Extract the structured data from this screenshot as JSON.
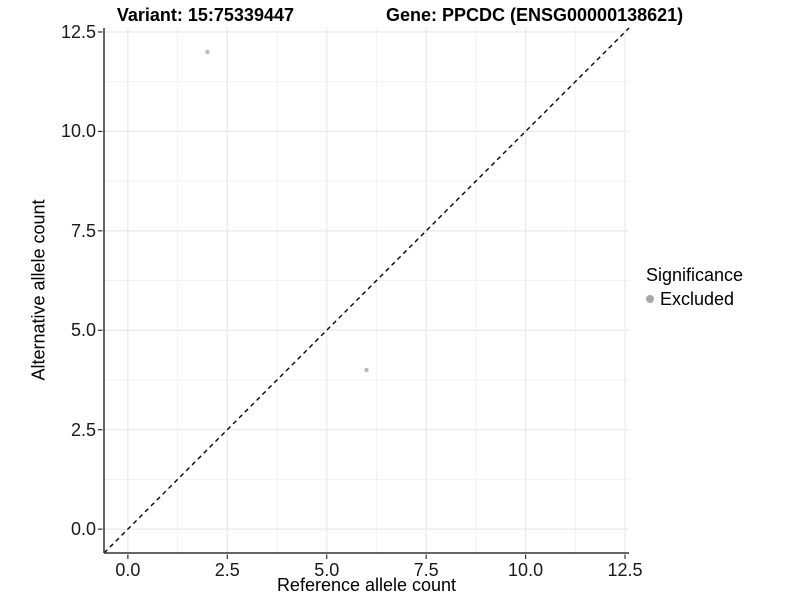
{
  "title": {
    "variant": "Variant: 15:75339447",
    "gene": "Gene: PPCDC (ENSG00000138621)"
  },
  "legend": {
    "title": "Significance",
    "items": [
      {
        "label": "Excluded",
        "color": "#a8a8a8"
      }
    ]
  },
  "chart_data": {
    "type": "scatter",
    "title": "Variant: 15:75339447    Gene: PPCDC (ENSG00000138621)",
    "xlabel": "Reference allele count",
    "ylabel": "Alternative allele count",
    "xlim": [
      -0.6,
      12.6
    ],
    "ylim": [
      -0.6,
      12.6
    ],
    "x_ticks": {
      "values": [
        0,
        2.5,
        5,
        7.5,
        10,
        12.5
      ],
      "labels": [
        "0.0",
        "2.5",
        "5.0",
        "7.5",
        "10.0",
        "12.5"
      ]
    },
    "y_ticks": {
      "values": [
        0,
        2.5,
        5,
        7.5,
        10,
        12.5
      ],
      "labels": [
        "0.0",
        "2.5",
        "5.0",
        "7.5",
        "10.0",
        "12.5"
      ]
    },
    "minor_ticks": [
      1.25,
      3.75,
      6.25,
      8.75,
      11.25
    ],
    "grid": true,
    "legend_position": "right-center",
    "series": [
      {
        "name": "Excluded",
        "color": "#b9b9b9",
        "point_radius": 2.2,
        "points": [
          [
            2,
            12
          ],
          [
            6,
            4
          ]
        ]
      }
    ],
    "reference_line": {
      "type": "identity",
      "slope": 1,
      "intercept": 0,
      "style": "dashed",
      "color": "#000000"
    }
  },
  "colors": {
    "background": "#ffffff",
    "grid_major": "#e9e9e9",
    "grid_minor": "#f1f1f1",
    "axis_line": "#333333",
    "tick_mark": "#333333",
    "tick_label": "#1a1a1a",
    "text": "#000000"
  }
}
